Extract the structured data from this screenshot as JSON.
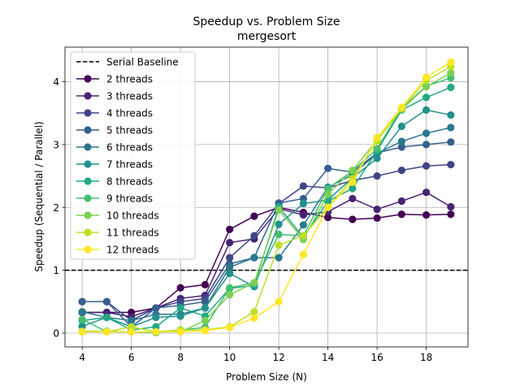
{
  "chart_data": {
    "type": "line",
    "title": "Speedup vs. Problem Size",
    "subtitle": "mergesort",
    "xlabel": "Problem Size (N)",
    "ylabel": "Speedup (Sequential / Parallel)",
    "xlim": [
      3.3,
      19.7
    ],
    "ylim": [
      -0.22,
      4.55
    ],
    "xticks": [
      4,
      6,
      8,
      10,
      12,
      14,
      16,
      18
    ],
    "yticks": [
      0,
      1,
      2,
      3,
      4
    ],
    "grid": true,
    "legend_position": "top-left",
    "baseline": {
      "name": "Serial Baseline",
      "value": 1,
      "style": "dashed",
      "color": "#000000"
    },
    "x": [
      4,
      5,
      6,
      7,
      8,
      9,
      10,
      11,
      12,
      13,
      14,
      15,
      16,
      17,
      18,
      19
    ],
    "series": [
      {
        "name": "2 threads",
        "color": "#440154",
        "values": [
          0.33,
          0.33,
          0.33,
          0.4,
          0.72,
          0.77,
          1.65,
          1.86,
          2.0,
          1.92,
          1.84,
          1.81,
          1.83,
          1.89,
          1.88,
          1.89
        ]
      },
      {
        "name": "3 threads",
        "color": "#482475",
        "values": [
          0.33,
          0.33,
          0.26,
          0.4,
          0.55,
          0.6,
          1.44,
          1.5,
          1.98,
          1.88,
          1.93,
          2.14,
          1.97,
          2.1,
          2.24,
          2.01
        ]
      },
      {
        "name": "4 threads",
        "color": "#414487",
        "values": [
          0.5,
          0.5,
          0.2,
          0.4,
          0.5,
          0.55,
          1.2,
          1.55,
          2.06,
          2.34,
          2.31,
          2.43,
          2.5,
          2.59,
          2.66,
          2.68
        ]
      },
      {
        "name": "5 threads",
        "color": "#355f8d",
        "values": [
          0.5,
          0.5,
          0.1,
          0.4,
          0.44,
          0.5,
          1.1,
          1.2,
          2.07,
          2.14,
          2.62,
          2.56,
          2.87,
          2.96,
          3.0,
          3.04
        ]
      },
      {
        "name": "6 threads",
        "color": "#2a788e",
        "values": [
          0.34,
          0.25,
          0.2,
          0.3,
          0.3,
          0.4,
          1.05,
          1.2,
          1.2,
          1.72,
          2.32,
          2.52,
          2.86,
          3.05,
          3.18,
          3.27
        ]
      },
      {
        "name": "7 threads",
        "color": "#21918c",
        "values": [
          0.11,
          0.25,
          0.1,
          0.25,
          0.27,
          0.4,
          0.95,
          0.74,
          1.73,
          2.06,
          2.12,
          2.47,
          2.78,
          3.29,
          3.55,
          3.47
        ]
      },
      {
        "name": "8 threads",
        "color": "#22a884",
        "values": [
          0.2,
          0.25,
          0.05,
          0.1,
          0.4,
          0.27,
          0.71,
          0.76,
          2.01,
          1.52,
          2.1,
          2.3,
          2.9,
          3.55,
          3.75,
          3.91
        ]
      },
      {
        "name": "9 threads",
        "color": "#44bf70",
        "values": [
          0.22,
          0.02,
          0.02,
          0.01,
          0.05,
          0.09,
          0.72,
          0.8,
          1.57,
          1.55,
          2.3,
          2.58,
          2.93,
          3.58,
          3.93,
          4.06
        ]
      },
      {
        "name": "10 threads",
        "color": "#7ad151",
        "values": [
          0.03,
          0.03,
          0.02,
          0.02,
          0.02,
          0.2,
          0.61,
          0.8,
          1.96,
          1.49,
          2.21,
          2.59,
          3.07,
          3.56,
          3.92,
          4.14
        ]
      },
      {
        "name": "11 threads",
        "color": "#bddf26",
        "values": [
          0.02,
          0.02,
          0.1,
          0.02,
          0.05,
          0.05,
          0.1,
          0.34,
          1.4,
          1.55,
          2.0,
          2.46,
          3.06,
          3.58,
          4.02,
          4.24
        ]
      },
      {
        "name": "12 threads",
        "color": "#fde725",
        "values": [
          0.02,
          0.02,
          0.02,
          0.02,
          0.02,
          0.04,
          0.09,
          0.24,
          0.5,
          1.25,
          2.0,
          2.4,
          3.11,
          3.59,
          4.07,
          4.31
        ]
      }
    ]
  }
}
